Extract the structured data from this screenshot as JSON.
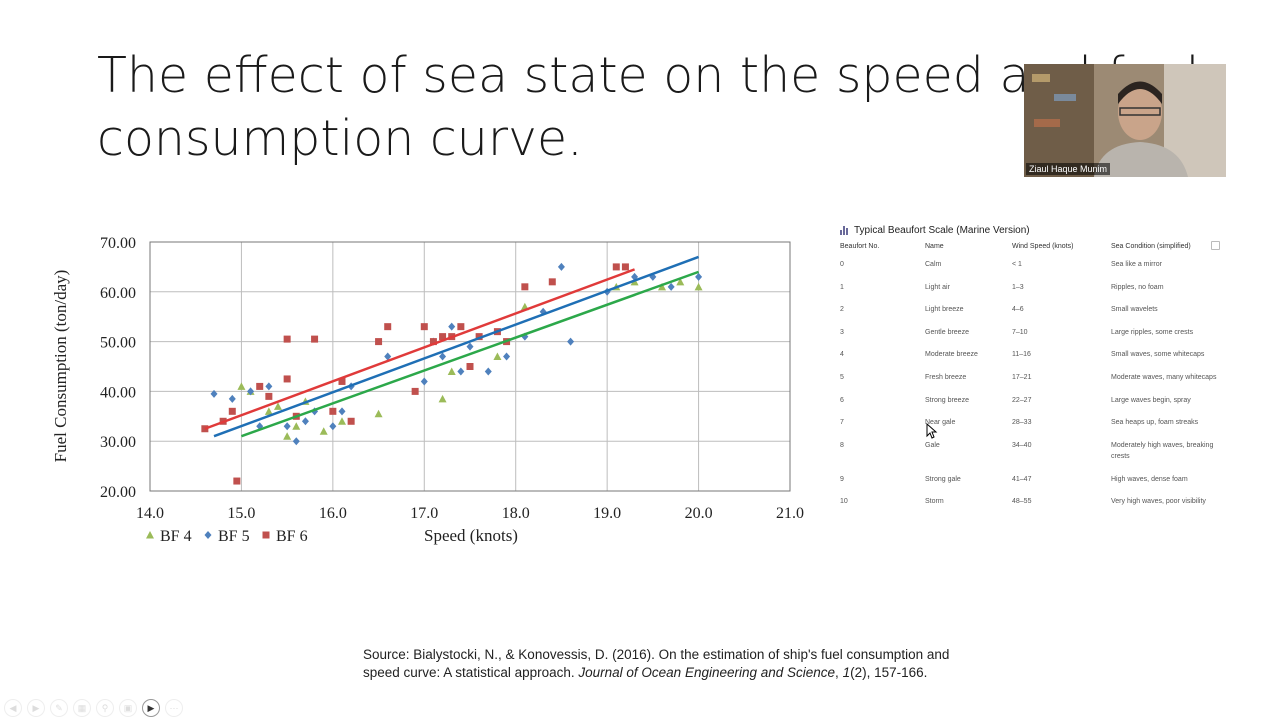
{
  "slide": {
    "title_line1": "The effect of sea state on the speed and fuel",
    "title_line2": "consumption curve.",
    "source_prefix": "Source: Bialystocki, N., & Konovessis, D. (2016). On the estimation of ship's fuel consumption and speed curve: A statistical approach. ",
    "source_journal": "Journal of Ocean Engineering and Science",
    "source_sep": ", ",
    "source_volume": "1",
    "source_suffix": "(2), 157-166."
  },
  "webcam": {
    "name": "Ziaul Haque Munim"
  },
  "beaufort": {
    "heading": "Typical Beaufort Scale (Marine Version)",
    "columns": [
      "Beaufort No.",
      "Name",
      "Wind Speed (knots)",
      "Sea Condition (simplified)"
    ],
    "rows": [
      [
        "0",
        "Calm",
        "< 1",
        "Sea like a mirror"
      ],
      [
        "1",
        "Light air",
        "1–3",
        "Ripples, no foam"
      ],
      [
        "2",
        "Light breeze",
        "4–6",
        "Small wavelets"
      ],
      [
        "3",
        "Gentle breeze",
        "7–10",
        "Large ripples, some crests"
      ],
      [
        "4",
        "Moderate breeze",
        "11–16",
        "Small waves, some whitecaps"
      ],
      [
        "5",
        "Fresh breeze",
        "17–21",
        "Moderate waves, many whitecaps"
      ],
      [
        "6",
        "Strong breeze",
        "22–27",
        "Large waves begin, spray"
      ],
      [
        "7",
        "Near gale",
        "28–33",
        "Sea heaps up, foam streaks"
      ],
      [
        "8",
        "Gale",
        "34–40",
        "Moderately high waves, breaking crests"
      ],
      [
        "9",
        "Strong gale",
        "41–47",
        "High waves, dense foam"
      ],
      [
        "10",
        "Storm",
        "48–55",
        "Very high waves, poor visibility"
      ]
    ]
  },
  "chart_data": {
    "type": "scatter",
    "title": "",
    "xlabel": "Speed (knots)",
    "ylabel": "Fuel Consumption (ton/day)",
    "xlim": [
      14.0,
      21.0
    ],
    "ylim": [
      20.0,
      70.0
    ],
    "xticks": [
      "14.0",
      "15.0",
      "16.0",
      "17.0",
      "18.0",
      "19.0",
      "20.0",
      "21.0"
    ],
    "yticks": [
      "20.00",
      "30.00",
      "40.00",
      "50.00",
      "60.00",
      "70.00"
    ],
    "grid": true,
    "legend_position": "bottom-left",
    "series": [
      {
        "name": "BF 4",
        "color": "#9bbb59",
        "trend_color": "#2ca84a",
        "marker": "triangle",
        "points": [
          [
            15.0,
            41
          ],
          [
            15.1,
            40
          ],
          [
            15.3,
            36
          ],
          [
            15.4,
            37
          ],
          [
            15.5,
            31
          ],
          [
            15.6,
            33
          ],
          [
            15.7,
            38
          ],
          [
            15.9,
            32
          ],
          [
            16.1,
            34
          ],
          [
            16.5,
            35.5
          ],
          [
            17.2,
            38.5
          ],
          [
            17.3,
            44
          ],
          [
            17.8,
            47
          ],
          [
            18.1,
            57
          ],
          [
            19.1,
            61
          ],
          [
            19.3,
            62
          ],
          [
            19.6,
            61
          ],
          [
            19.8,
            62
          ],
          [
            20.0,
            61
          ]
        ],
        "trend": [
          [
            15.0,
            31
          ],
          [
            20.0,
            64
          ]
        ]
      },
      {
        "name": "BF 5",
        "color": "#4f81bd",
        "trend_color": "#1f6fb5",
        "marker": "diamond",
        "points": [
          [
            14.7,
            39.5
          ],
          [
            14.9,
            38.5
          ],
          [
            15.1,
            40
          ],
          [
            15.2,
            33
          ],
          [
            15.3,
            41
          ],
          [
            15.5,
            33
          ],
          [
            15.6,
            30
          ],
          [
            15.7,
            34
          ],
          [
            15.8,
            36
          ],
          [
            16.0,
            33
          ],
          [
            16.1,
            36
          ],
          [
            16.2,
            41
          ],
          [
            16.6,
            47
          ],
          [
            17.0,
            42
          ],
          [
            17.1,
            50
          ],
          [
            17.2,
            47
          ],
          [
            17.3,
            53
          ],
          [
            17.4,
            44
          ],
          [
            17.5,
            49
          ],
          [
            17.7,
            44
          ],
          [
            17.9,
            47
          ],
          [
            18.1,
            51
          ],
          [
            18.3,
            56
          ],
          [
            18.5,
            65
          ],
          [
            18.6,
            50
          ],
          [
            19.0,
            60
          ],
          [
            19.3,
            63
          ],
          [
            19.5,
            63
          ],
          [
            19.7,
            61
          ],
          [
            20.0,
            63
          ]
        ],
        "trend": [
          [
            14.7,
            31
          ],
          [
            20.0,
            67
          ]
        ]
      },
      {
        "name": "BF 6",
        "color": "#c0504d",
        "trend_color": "#e03a3a",
        "marker": "square",
        "points": [
          [
            14.6,
            32.5
          ],
          [
            14.8,
            34
          ],
          [
            14.9,
            36
          ],
          [
            14.95,
            22
          ],
          [
            15.2,
            41
          ],
          [
            15.3,
            39
          ],
          [
            15.5,
            42.5
          ],
          [
            15.5,
            50.5
          ],
          [
            15.6,
            35
          ],
          [
            15.8,
            50.5
          ],
          [
            16.0,
            36
          ],
          [
            16.1,
            42
          ],
          [
            16.2,
            34
          ],
          [
            16.5,
            50
          ],
          [
            16.6,
            53
          ],
          [
            16.9,
            40
          ],
          [
            17.0,
            53
          ],
          [
            17.1,
            50
          ],
          [
            17.2,
            51
          ],
          [
            17.3,
            51
          ],
          [
            17.4,
            53
          ],
          [
            17.5,
            45
          ],
          [
            17.6,
            51
          ],
          [
            17.8,
            52
          ],
          [
            17.9,
            50
          ],
          [
            18.1,
            61
          ],
          [
            18.4,
            62
          ],
          [
            19.1,
            65
          ],
          [
            19.2,
            65
          ]
        ],
        "trend": [
          [
            14.6,
            32.5
          ],
          [
            19.3,
            64.5
          ]
        ]
      }
    ]
  }
}
